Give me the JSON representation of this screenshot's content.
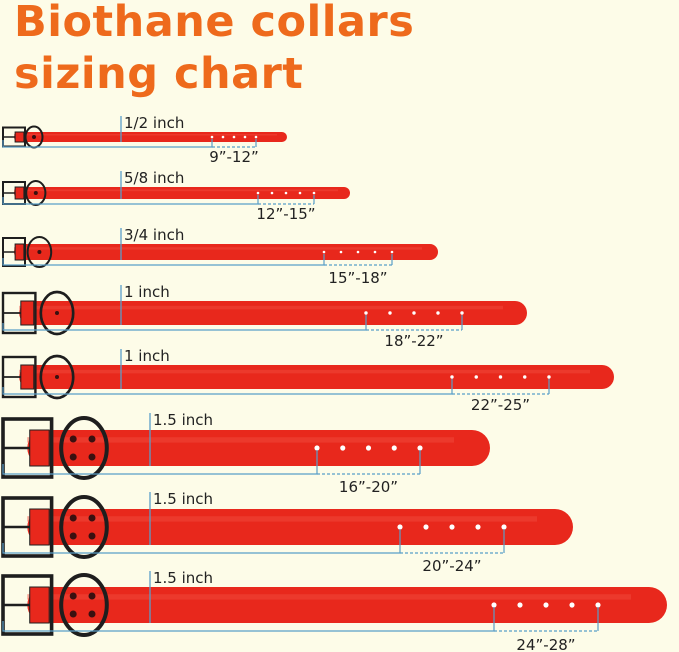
{
  "title": {
    "line1": "Biothane collars",
    "line2": "sizing chart"
  },
  "colors": {
    "title": "#ee6a1c",
    "strap": "#e8281c",
    "hardware": "#1e1e1e",
    "measure_line": "#5a9ec8",
    "background": "#fdfce8"
  },
  "collars": [
    {
      "width_label": "1/2 inch",
      "size_range": "9”-12”"
    },
    {
      "width_label": "5/8 inch",
      "size_range": "12”-15”"
    },
    {
      "width_label": "3/4 inch",
      "size_range": "15”-18”"
    },
    {
      "width_label": "1 inch",
      "size_range": "18”-22”"
    },
    {
      "width_label": "1 inch",
      "size_range": "22”-25”"
    },
    {
      "width_label": "1.5 inch",
      "size_range": "16”-20”"
    },
    {
      "width_label": "1.5 inch",
      "size_range": "20”-24”"
    },
    {
      "width_label": "1.5 inch",
      "size_range": "24”-28”"
    }
  ]
}
